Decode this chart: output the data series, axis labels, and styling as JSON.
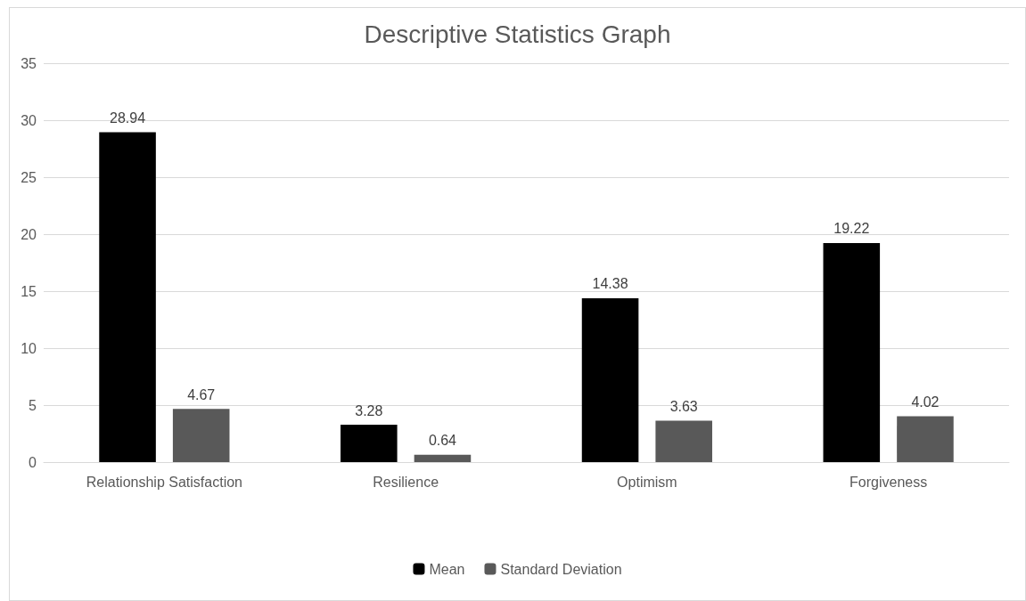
{
  "chart_data": {
    "type": "bar",
    "title": "Descriptive Statistics Graph",
    "categories": [
      "Relationship Satisfaction",
      "Resilience",
      "Optimism",
      "Forgiveness"
    ],
    "series": [
      {
        "name": "Mean",
        "color": "#000000",
        "values": [
          28.94,
          3.28,
          14.38,
          19.22
        ]
      },
      {
        "name": "Standard Deviation",
        "color": "#595959",
        "values": [
          4.67,
          0.64,
          3.63,
          4.02
        ]
      }
    ],
    "ylim": [
      0,
      35
    ],
    "yticks": [
      0,
      5,
      10,
      15,
      20,
      25,
      30,
      35
    ],
    "grid": "y",
    "legend": "bottom",
    "data_labels": true
  }
}
